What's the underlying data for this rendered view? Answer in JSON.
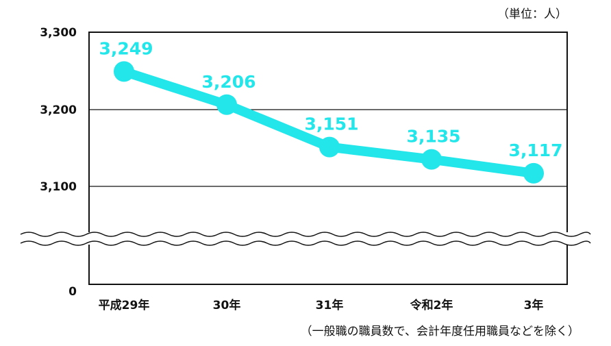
{
  "chart_data": {
    "type": "line",
    "unit_note": "（単位：人）",
    "footnote": "（一般職の職員数で、会計年度任用職員などを除く）",
    "categories": [
      "平成29年",
      "30年",
      "31年",
      "令和2年",
      "3年"
    ],
    "series": [
      {
        "values": [
          3249,
          3206,
          3151,
          3135,
          3117
        ]
      }
    ],
    "data_labels": [
      "3,249",
      "3,206",
      "3,151",
      "3,135",
      "3,117"
    ],
    "y_ticks": [
      {
        "value": 3300,
        "label": "3,300"
      },
      {
        "value": 3200,
        "label": "3,200"
      },
      {
        "value": 3100,
        "label": "3,100"
      },
      {
        "value": 0,
        "label": "0"
      }
    ],
    "ylim_upper": [
      3100,
      3300
    ],
    "axis_break": true,
    "grid": true,
    "line_color": "#22e6ea"
  }
}
